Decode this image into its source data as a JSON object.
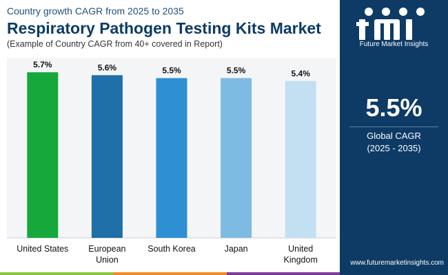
{
  "header": {
    "kicker": "Country growth CAGR from 2025 to 2035",
    "title": "Respiratory Pathogen Testing Kits Market",
    "subtitle": "(Example of Country CAGR from 40+ covered in Report)"
  },
  "sidebar": {
    "logo_text": "Future Market Insights",
    "global_value": "5.5%",
    "global_label": "Global CAGR",
    "global_period": "(2025 - 2035)",
    "url": "www.futuremarketinsights.com"
  },
  "colors": {
    "brand_navy": "#0d3b66",
    "strip": [
      "#8dc63f",
      "#f28c28",
      "#7b3f98"
    ]
  },
  "chart_data": {
    "type": "bar",
    "categories": [
      "United States",
      "European Union",
      "South Korea",
      "Japan",
      "United Kingdom"
    ],
    "category_lines": [
      [
        "United States"
      ],
      [
        "European",
        "Union"
      ],
      [
        "South Korea"
      ],
      [
        "Japan"
      ],
      [
        "United",
        "Kingdom"
      ]
    ],
    "values": [
      5.7,
      5.6,
      5.5,
      5.5,
      5.4
    ],
    "value_labels": [
      "5.7%",
      "5.6%",
      "5.5%",
      "5.5%",
      "5.4%"
    ],
    "bar_colors": [
      "#16a83a",
      "#1f6fa8",
      "#2f8fd3",
      "#7dbbe3",
      "#c3e0f2"
    ],
    "ylim": [
      0,
      6.2
    ],
    "grid": false
  }
}
